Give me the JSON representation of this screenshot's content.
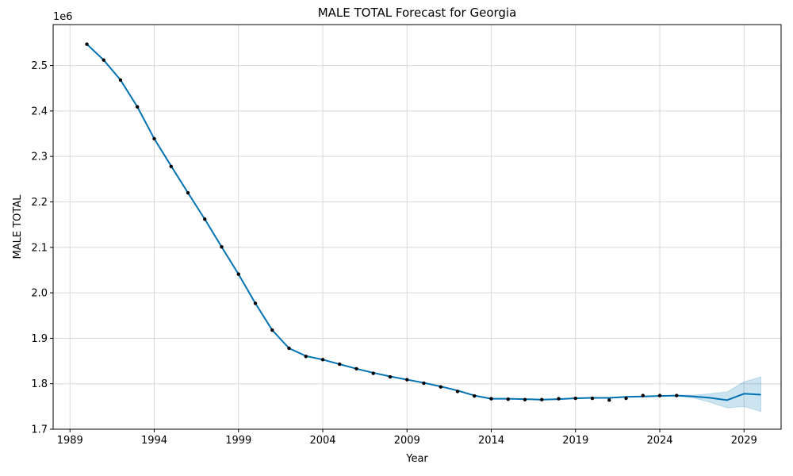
{
  "chart_data": {
    "type": "line",
    "title": "MALE TOTAL Forecast for Georgia",
    "xlabel": "Year",
    "ylabel": "MALE TOTAL",
    "y_scale_label": "1e6",
    "xlim": [
      1988,
      2031.2
    ],
    "ylim": [
      1.7,
      2.59
    ],
    "x_ticks": [
      1989,
      1994,
      1999,
      2004,
      2009,
      2014,
      2019,
      2024,
      2029
    ],
    "x_tick_labels": [
      "1989",
      "1994",
      "1999",
      "2004",
      "2009",
      "2014",
      "2019",
      "2024",
      "2029"
    ],
    "y_ticks": [
      1.7,
      1.8,
      1.9,
      2.0,
      2.1,
      2.2,
      2.3,
      2.4,
      2.5
    ],
    "y_tick_labels": [
      "1.7",
      "1.8",
      "1.9",
      "2.0",
      "2.1",
      "2.2",
      "2.3",
      "2.4",
      "2.5"
    ],
    "grid": true,
    "colors": {
      "line": "#0072B2",
      "band": "#0072B2",
      "points": "#000000",
      "grid": "#d9d9d9"
    },
    "observed": {
      "x": [
        1990,
        1991,
        1992,
        1993,
        1994,
        1995,
        1996,
        1997,
        1998,
        1999,
        2000,
        2001,
        2002,
        2003,
        2004,
        2005,
        2006,
        2007,
        2008,
        2009,
        2010,
        2011,
        2012,
        2013,
        2014,
        2015,
        2016,
        2017,
        2018,
        2019,
        2020,
        2021,
        2022,
        2023,
        2024,
        2025
      ],
      "y": [
        2.547,
        2.512,
        2.468,
        2.409,
        2.339,
        2.278,
        2.22,
        2.162,
        2.101,
        2.041,
        1.977,
        1.918,
        1.878,
        1.86,
        1.853,
        1.843,
        1.833,
        1.823,
        1.815,
        1.809,
        1.801,
        1.793,
        1.783,
        1.773,
        1.767,
        1.766,
        1.765,
        1.765,
        1.767,
        1.768,
        1.768,
        1.764,
        1.768,
        1.774,
        1.774,
        1.774
      ]
    },
    "forecast": {
      "x": [
        1990,
        1991,
        1992,
        1993,
        1994,
        1995,
        1996,
        1997,
        1998,
        1999,
        2000,
        2001,
        2002,
        2003,
        2004,
        2005,
        2006,
        2007,
        2008,
        2009,
        2010,
        2011,
        2012,
        2013,
        2014,
        2015,
        2016,
        2017,
        2018,
        2019,
        2020,
        2021,
        2022,
        2023,
        2024,
        2025,
        2026,
        2027,
        2028,
        2029,
        2030
      ],
      "y": [
        2.547,
        2.512,
        2.468,
        2.409,
        2.339,
        2.279,
        2.22,
        2.162,
        2.101,
        2.041,
        1.977,
        1.918,
        1.878,
        1.861,
        1.853,
        1.843,
        1.833,
        1.824,
        1.816,
        1.809,
        1.802,
        1.794,
        1.785,
        1.774,
        1.767,
        1.767,
        1.766,
        1.765,
        1.766,
        1.768,
        1.769,
        1.769,
        1.771,
        1.772,
        1.773,
        1.774,
        1.772,
        1.769,
        1.764,
        1.778,
        1.776
      ],
      "lower": [
        2.547,
        2.512,
        2.468,
        2.409,
        2.339,
        2.279,
        2.22,
        2.162,
        2.101,
        2.041,
        1.977,
        1.918,
        1.878,
        1.861,
        1.853,
        1.843,
        1.833,
        1.824,
        1.816,
        1.809,
        1.802,
        1.794,
        1.785,
        1.774,
        1.767,
        1.767,
        1.766,
        1.765,
        1.766,
        1.768,
        1.769,
        1.769,
        1.771,
        1.772,
        1.773,
        1.773,
        1.769,
        1.759,
        1.747,
        1.75,
        1.739
      ],
      "upper": [
        2.547,
        2.512,
        2.468,
        2.409,
        2.339,
        2.279,
        2.22,
        2.162,
        2.101,
        2.041,
        1.977,
        1.918,
        1.878,
        1.861,
        1.853,
        1.843,
        1.833,
        1.824,
        1.816,
        1.809,
        1.802,
        1.794,
        1.785,
        1.774,
        1.767,
        1.767,
        1.766,
        1.765,
        1.766,
        1.768,
        1.769,
        1.769,
        1.771,
        1.772,
        1.773,
        1.775,
        1.775,
        1.778,
        1.782,
        1.804,
        1.815
      ]
    }
  }
}
